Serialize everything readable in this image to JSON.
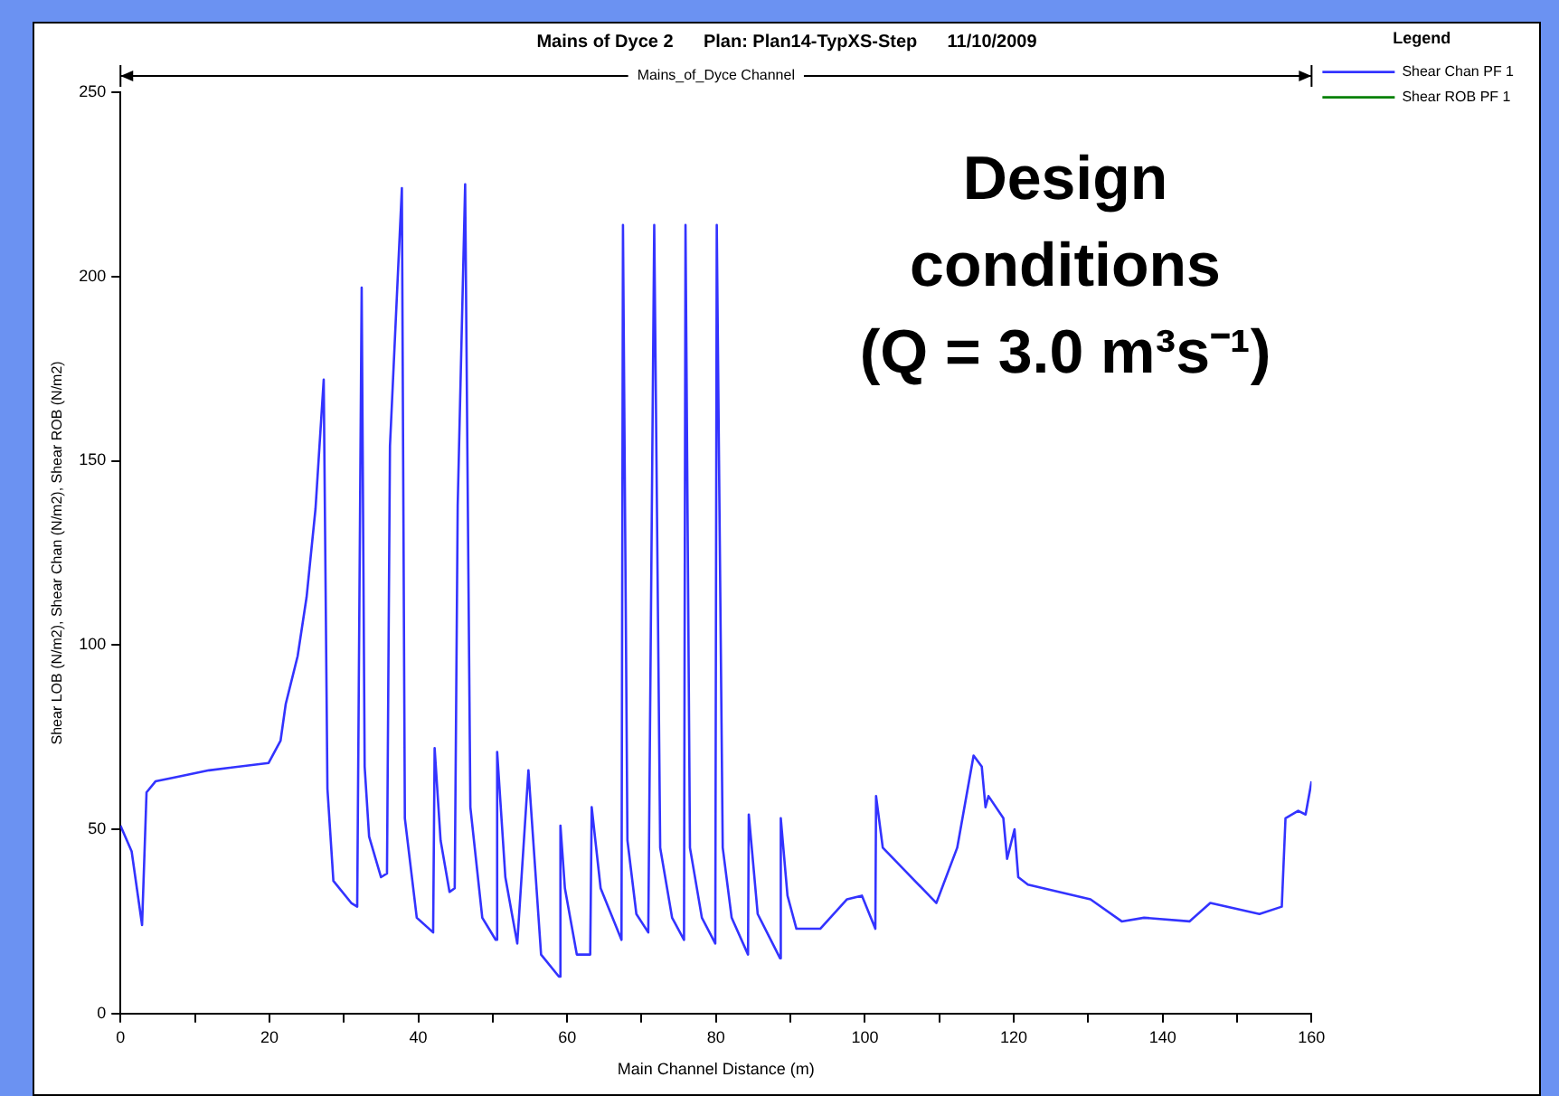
{
  "chart_data": {
    "type": "line",
    "title": "Mains of Dyce 2      Plan: Plan14-TypXS-Step      11/10/2009",
    "xlabel": "Main Channel Distance (m)",
    "ylabel": "Shear LOB (N/m2), Shear Chan (N/m2), Shear ROB (N/m2)",
    "legend_title": "Legend",
    "annotations": [
      "Mains_of_Dyce Channel",
      "Design\nconditions\n(Q = 3.0 m³s⁻¹)"
    ],
    "xlim": [
      0,
      160
    ],
    "xticks": [
      0,
      {
        "value": 10,
        "label": null
      },
      20,
      {
        "value": 30,
        "label": null
      },
      40,
      {
        "value": 50,
        "label": null
      },
      60,
      {
        "value": 70,
        "label": null
      },
      80,
      {
        "value": 90,
        "label": null
      },
      100,
      {
        "value": 110,
        "label": null
      },
      120,
      {
        "value": 130,
        "label": null
      },
      140,
      {
        "value": 150,
        "label": null
      },
      160
    ],
    "ylim": [
      0,
      250
    ],
    "yticks": [
      0,
      50,
      100,
      150,
      200,
      250
    ],
    "grid": false,
    "legend": "top right",
    "marker": "none",
    "series": [
      {
        "name": "Shear Chan PF 1",
        "color": "#3333ff",
        "line_style": "solid",
        "x": [
          0,
          1.5,
          2.9,
          3.5,
          4.7,
          7.1,
          11.9,
          19.9,
          21.5,
          22.2,
          23.8,
          25,
          26.2,
          27.3,
          27.8,
          28.6,
          31,
          31.8,
          32.4,
          32.8,
          33.4,
          35,
          35.8,
          36.2,
          37.8,
          38.2,
          39.8,
          42,
          42.2,
          43,
          44.2,
          44.9,
          45.3,
          46.3,
          47,
          48.6,
          50.4,
          50.6,
          51.7,
          53.3,
          54.8,
          56.5,
          58.9,
          59.1,
          59.7,
          61.3,
          63.1,
          63.3,
          64.5,
          67.3,
          67.5,
          68.1,
          69.3,
          70.9,
          71.7,
          72.5,
          74.1,
          75.7,
          75.9,
          76.5,
          78.1,
          79.9,
          80.1,
          80.9,
          82.1,
          84.3,
          84.4,
          85.6,
          88.6,
          88.7,
          89.6,
          90.8,
          94,
          97.6,
          99.6,
          101.4,
          101.5,
          102.4,
          109.6,
          112.4,
          114.6,
          115.7,
          116.2,
          116.6,
          118.6,
          119.1,
          120.1,
          120.6,
          121.9,
          130.3,
          134.5,
          137.5,
          143.6,
          146.4,
          153,
          156,
          156.5,
          158.2,
          159.2,
          160
        ],
        "values": [
          51,
          44,
          24,
          60,
          63,
          64,
          66,
          68,
          74,
          84,
          97,
          113,
          137,
          172,
          61,
          36,
          30,
          29,
          197,
          67,
          48,
          37,
          38,
          154,
          224,
          53,
          26,
          22,
          72,
          47,
          33,
          34,
          138,
          225,
          56,
          26,
          20,
          71,
          37,
          19,
          66,
          16,
          10,
          51,
          34,
          16,
          16,
          56,
          34,
          20,
          214,
          47,
          27,
          22,
          214,
          45,
          26,
          20,
          214,
          45,
          26,
          19,
          214,
          45,
          26,
          16,
          54,
          27,
          15,
          53,
          32,
          23,
          23,
          31,
          32,
          23,
          59,
          45,
          30,
          45,
          70,
          67,
          56,
          59,
          53,
          42,
          50,
          37,
          35,
          31,
          25,
          26,
          25,
          30,
          27,
          29,
          53,
          55,
          54,
          63
        ]
      },
      {
        "name": "Shear ROB PF 1",
        "color": "#008000",
        "line_style": "dashed"
      }
    ]
  }
}
